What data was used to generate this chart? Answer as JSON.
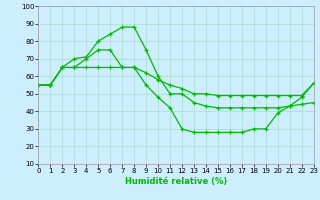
{
  "xlabel": "Humidité relative (%)",
  "background_color": "#cceeff",
  "grid_color": "#aaddcc",
  "line_color": "#00bb00",
  "xlim": [
    0,
    23
  ],
  "ylim": [
    10,
    100
  ],
  "yticks": [
    10,
    20,
    30,
    40,
    50,
    60,
    70,
    80,
    90,
    100
  ],
  "xticks": [
    0,
    1,
    2,
    3,
    4,
    5,
    6,
    7,
    8,
    9,
    10,
    11,
    12,
    13,
    14,
    15,
    16,
    17,
    18,
    19,
    20,
    21,
    22,
    23
  ],
  "series": [
    [
      55,
      55,
      65,
      70,
      71,
      80,
      84,
      88,
      88,
      75,
      60,
      50,
      50,
      45,
      43,
      42,
      42,
      42,
      42,
      42,
      42,
      43,
      44,
      45
    ],
    [
      55,
      55,
      65,
      65,
      70,
      75,
      75,
      65,
      65,
      62,
      58,
      55,
      53,
      50,
      50,
      49,
      49,
      49,
      49,
      49,
      49,
      49,
      49,
      56
    ],
    [
      55,
      55,
      65,
      65,
      65,
      65,
      65,
      65,
      65,
      55,
      48,
      42,
      30,
      28,
      28,
      28,
      28,
      28,
      30,
      30,
      39,
      43,
      48,
      56
    ]
  ]
}
